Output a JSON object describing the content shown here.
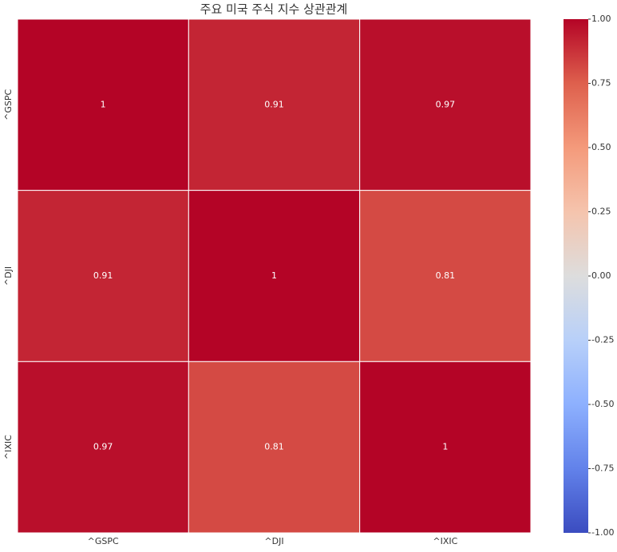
{
  "chart_data": {
    "type": "heatmap",
    "title": "주요 미국 주식 지수 상관관계",
    "x_categories": [
      "^GSPC",
      "^DJI",
      "^IXIC"
    ],
    "y_categories": [
      "^GSPC",
      "^DJI",
      "^IXIC"
    ],
    "values": [
      [
        1,
        0.91,
        0.97
      ],
      [
        0.91,
        1,
        0.81
      ],
      [
        0.97,
        0.81,
        1
      ]
    ],
    "colormap": "coolwarm",
    "clim": [
      -1,
      1
    ],
    "colorbar_ticks": [
      {
        "value": 1,
        "label": "1.00"
      },
      {
        "value": 0.75,
        "label": "0.75"
      },
      {
        "value": 0.5,
        "label": "0.50"
      },
      {
        "value": 0.25,
        "label": "0.25"
      },
      {
        "value": 0,
        "label": "0.00"
      },
      {
        "value": -0.25,
        "label": "-0.25"
      },
      {
        "value": -0.5,
        "label": "-0.50"
      },
      {
        "value": -0.75,
        "label": "-0.75"
      },
      {
        "value": -1,
        "label": "-1.00"
      }
    ]
  }
}
